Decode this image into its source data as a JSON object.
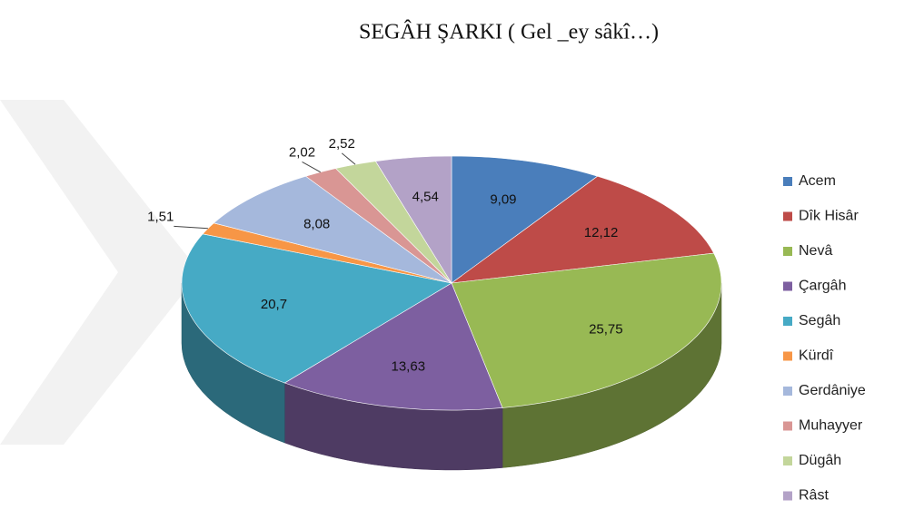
{
  "chart_data": {
    "type": "pie3d",
    "title": "SEGÂH ŞARKI ( Gel _ey sâkî…)",
    "categories": [
      "Acem",
      "Dîk Hisâr",
      "Nevâ",
      "Çargâh",
      "Segâh",
      "Kürdî",
      "Gerdâniye",
      "Muhayyer",
      "Dügâh",
      "Râst"
    ],
    "values": [
      9.09,
      12.12,
      25.75,
      13.63,
      20.7,
      1.51,
      8.08,
      2.02,
      2.52,
      4.54
    ],
    "value_labels": [
      "9,09",
      "12,12",
      "25,75",
      "13,63",
      "20,7",
      "1,51",
      "8,08",
      "2,02",
      "2,52",
      "4,54"
    ],
    "colors": [
      "#4a7ebb",
      "#be4b48",
      "#98b954",
      "#7d5fa0",
      "#46aac5",
      "#f79646",
      "#a5b8dc",
      "#d99694",
      "#c3d69b",
      "#b3a2c7"
    ],
    "legend": "right"
  }
}
